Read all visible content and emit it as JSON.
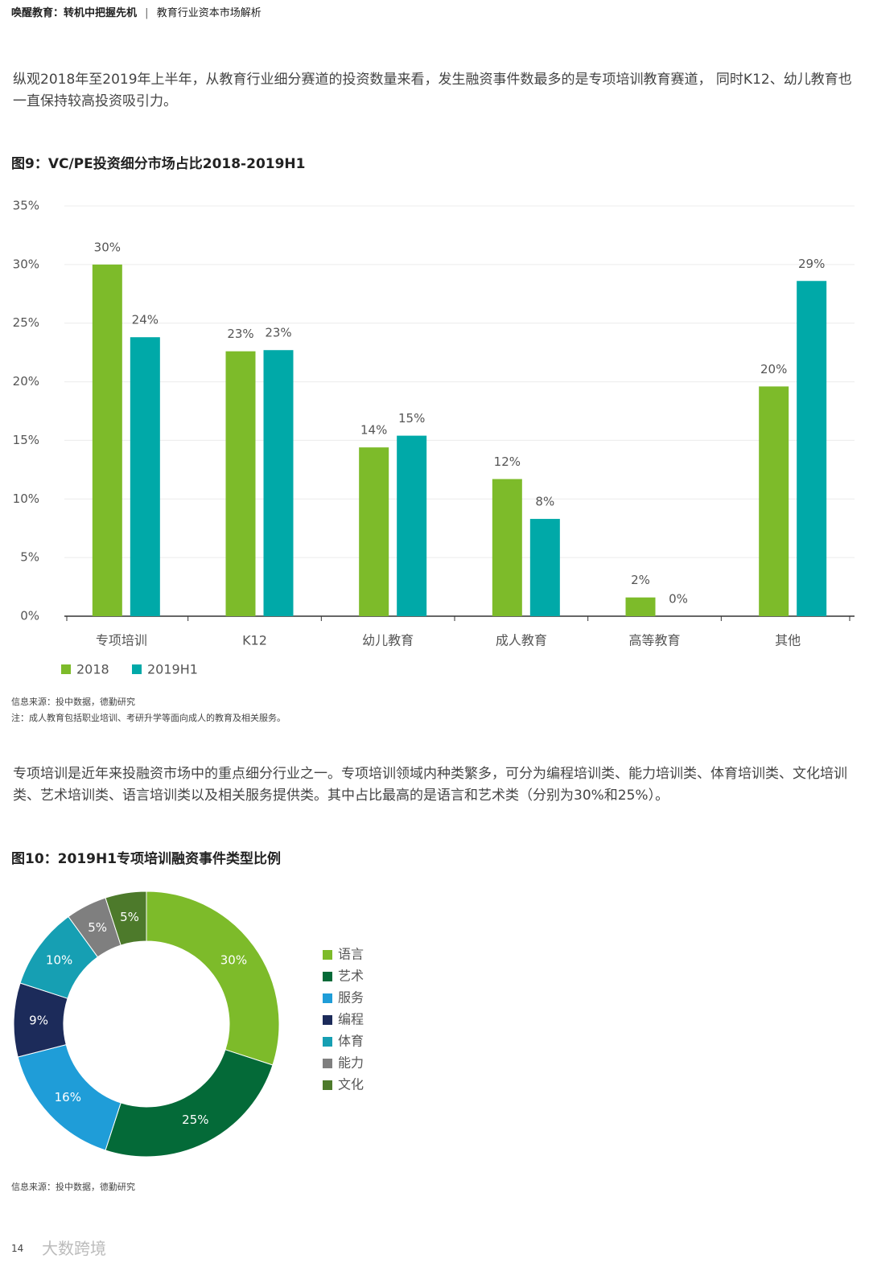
{
  "header": {
    "title": "唤醒教育：转机中把握先机",
    "subtitle": "教育行业资本市场解析"
  },
  "paragraphs": [
    "纵观2018年至2019年上半年，从教育行业细分赛道的投资数量来看，发生融资事件数最多的是专项培训教育赛道， 同时K12、幼儿教育也一直保持较高投资吸引力。",
    "专项培训是近年来投融资市场中的重点细分行业之一。专项培训领域内种类繁多，可分为编程培训类、能力培训类、体育培训类、文化培训类、艺术培训类、语言培训类以及相关服务提供类。其中占比最高的是语言和艺术类（分别为30%和25%）。"
  ],
  "chart_data": [
    {
      "type": "bar",
      "title": "图9：VC/PE投资细分市场占比2018-2019H1",
      "categories": [
        "专项培训",
        "K12",
        "幼儿教育",
        "成人教育",
        "高等教育",
        "其他"
      ],
      "series": [
        {
          "name": "2018",
          "color": "#7dbb2a",
          "values": [
            30,
            22.6,
            14.4,
            11.7,
            1.6,
            19.6
          ],
          "value_labels": [
            "30%",
            "23%",
            "14%",
            "12%",
            "2%",
            "20%"
          ]
        },
        {
          "name": "2019H1",
          "color": "#00a9a8",
          "values": [
            23.8,
            22.7,
            15.4,
            8.3,
            0,
            28.6
          ],
          "value_labels": [
            "24%",
            "23%",
            "15%",
            "8%",
            "0%",
            "29%"
          ]
        }
      ],
      "ylim": [
        0,
        35
      ],
      "yticks": [
        {
          "value": 0,
          "label": "0%"
        },
        {
          "value": 5,
          "label": "5%"
        },
        {
          "value": 10,
          "label": "10%"
        },
        {
          "value": 15,
          "label": "15%"
        },
        {
          "value": 20,
          "label": "20%"
        },
        {
          "value": 25,
          "label": "25%"
        },
        {
          "value": 30,
          "label": "30%"
        },
        {
          "value": 35,
          "label": "35%"
        }
      ],
      "grid": true,
      "legend": "bottom-left",
      "notes": [
        "信息来源：投中数据，德勤研究",
        "注：成人教育包括职业培训、考研升学等面向成人的教育及相关服务。"
      ]
    },
    {
      "type": "donut",
      "title": "图10：2019H1专项培训融资事件类型比例",
      "categories": [
        "语言",
        "艺术",
        "服务",
        "编程",
        "体育",
        "能力",
        "文化"
      ],
      "values": [
        30,
        25,
        16,
        9,
        10,
        5,
        5
      ],
      "value_labels": [
        "30%",
        "25%",
        "16%",
        "9%",
        "10%",
        "5%",
        "5%"
      ],
      "colors": [
        "#7dbb2a",
        "#046a38",
        "#1f9dd8",
        "#1c2b5a",
        "#169fb3",
        "#7f7f7f",
        "#4d7a2b"
      ],
      "legend": "right",
      "notes": [
        "信息来源：投中数据，德勤研究"
      ]
    }
  ],
  "footer": {
    "page": "14",
    "watermark": "大数跨境"
  }
}
